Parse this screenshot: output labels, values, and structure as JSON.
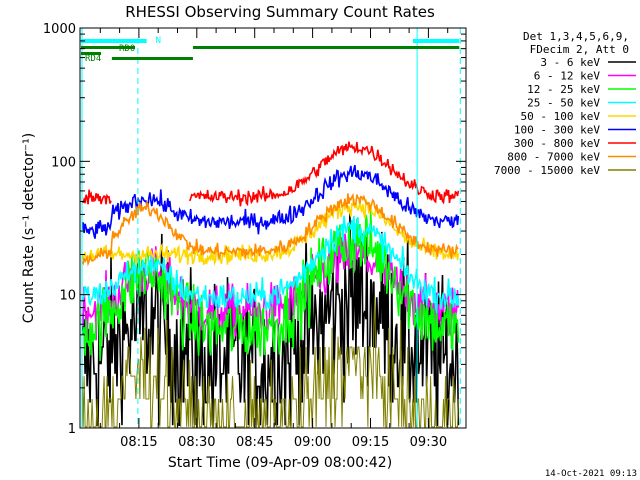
{
  "chart_data": {
    "type": "line",
    "title": "RHESSI Observing Summary Count Rates",
    "xlabel": "Start Time (09-Apr-09 08:00:42)",
    "ylabel": "Count Rate (s⁻¹ detector⁻¹)",
    "yscale": "log",
    "ylim": [
      1,
      1000
    ],
    "xlim_minutes": [
      0,
      100
    ],
    "y_ticks": [
      {
        "value": 1,
        "label": "1"
      },
      {
        "value": 10,
        "label": "10"
      },
      {
        "value": 100,
        "label": "100"
      },
      {
        "value": 1000,
        "label": "1000"
      }
    ],
    "x_ticks": [
      {
        "minute": 15,
        "label": "08:15"
      },
      {
        "minute": 30,
        "label": "08:30"
      },
      {
        "minute": 45,
        "label": "08:45"
      },
      {
        "minute": 60,
        "label": "09:00"
      },
      {
        "minute": 75,
        "label": "09:15"
      },
      {
        "minute": 90,
        "label": "09:30"
      }
    ],
    "legend_header": [
      "Det 1,3,4,5,6,9,",
      "FDecim 2, Att 0"
    ],
    "series": [
      {
        "name": "3 - 6 keV",
        "color": "#000000",
        "peak1": 6.3,
        "peak2": 9.2,
        "background": 3.0,
        "noise": 0.45
      },
      {
        "name": "6 - 12 keV",
        "color": "#ff00ff",
        "peak1": 15,
        "peak2": 19,
        "background": 7.5,
        "noise": 0.14
      },
      {
        "name": "12 - 25 keV",
        "color": "#00ff00",
        "peak1": 15,
        "peak2": 25,
        "background": 5.5,
        "noise": 0.18
      },
      {
        "name": "25 - 50 keV",
        "color": "#00ffff",
        "peak1": 17,
        "peak2": 32,
        "background": 9.5,
        "noise": 0.08
      },
      {
        "name": "50 - 100 keV",
        "color": "#ffd700",
        "peak1": 19,
        "peak2": 47,
        "background": 20,
        "noise": 0.05
      },
      {
        "name": "100 - 300 keV",
        "color": "#0000ff",
        "peak1": 53,
        "peak2": 82,
        "background": 35,
        "noise": 0.05
      },
      {
        "name": "300 - 800 keV",
        "color": "#ff0000",
        "peak1": 0,
        "peak2": 128,
        "background": 54,
        "noise": 0.04
      },
      {
        "name": "800 - 7000 keV",
        "color": "#ff8c00",
        "peak1": 44,
        "peak2": 52,
        "background": 21,
        "noise": 0.04
      },
      {
        "name": "7000 - 15000 keV",
        "color": "#808000",
        "peak1": 2.5,
        "peak2": 2.8,
        "background": 1.0,
        "noise": 0.3
      }
    ],
    "events": {
      "night_start_minute": 15,
      "night_end_minute": 85,
      "data_end_minute": 98,
      "night_label": "N",
      "rd0_label": "RD0",
      "rd4_label": "RD4",
      "rd0_bars_minute": [
        [
          0,
          14
        ],
        [
          29,
          98
        ]
      ],
      "rd4_bars_minute": [
        [
          8,
          29
        ]
      ],
      "night_bars_minute": [
        [
          0,
          17
        ],
        [
          86,
          98
        ]
      ],
      "night_color": "#00ffff",
      "saa_color": "#008000"
    }
  },
  "footer": {
    "timestamp": "14-Oct-2021 09:13"
  }
}
